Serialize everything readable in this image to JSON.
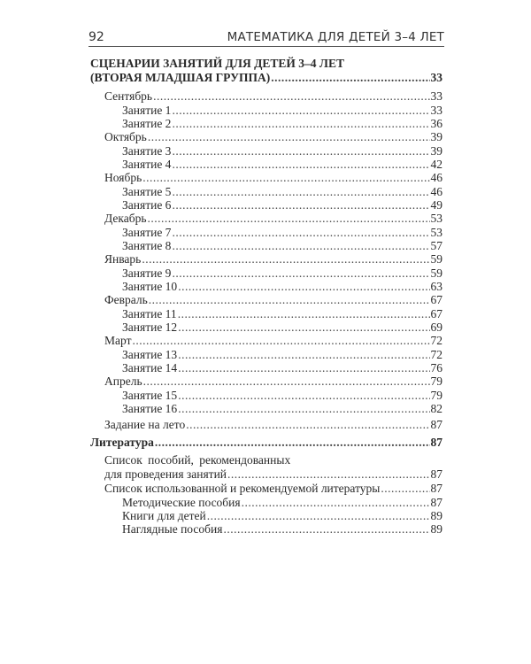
{
  "header": {
    "page_number": "92",
    "running_title": "МАТЕМАТИКА ДЛЯ ДЕТЕЙ 3–4 ЛЕТ"
  },
  "toc": {
    "section1": {
      "title_line1": "СЦЕНАРИИ ЗАНЯТИЙ ДЛЯ ДЕТЕЙ 3–4 ЛЕТ",
      "title_line2": "(ВТОРАЯ МЛАДШАЯ ГРУППА)",
      "page": "33"
    },
    "months": [
      {
        "label": "Сентябрь",
        "page": "33",
        "lessons": [
          {
            "label": "Занятие 1",
            "page": "33"
          },
          {
            "label": "Занятие 2",
            "page": "36"
          }
        ]
      },
      {
        "label": "Октябрь",
        "page": "39",
        "lessons": [
          {
            "label": "Занятие 3",
            "page": "39"
          },
          {
            "label": "Занятие 4",
            "page": "42"
          }
        ]
      },
      {
        "label": "Ноябрь",
        "page": "46",
        "lessons": [
          {
            "label": "Занятие 5",
            "page": "46"
          },
          {
            "label": "Занятие 6",
            "page": "49"
          }
        ]
      },
      {
        "label": "Декабрь",
        "page": "53",
        "lessons": [
          {
            "label": "Занятие 7",
            "page": "53"
          },
          {
            "label": "Занятие 8",
            "page": "57"
          }
        ]
      },
      {
        "label": "Январь",
        "page": "59",
        "lessons": [
          {
            "label": "Занятие 9",
            "page": "59"
          },
          {
            "label": "Занятие 10",
            "page": "63"
          }
        ]
      },
      {
        "label": "Февраль",
        "page": "67",
        "lessons": [
          {
            "label": "Занятие 11",
            "page": "67"
          },
          {
            "label": "Занятие 12",
            "page": "69"
          }
        ]
      },
      {
        "label": "Март",
        "page": "72",
        "lessons": [
          {
            "label": "Занятие 13",
            "page": "72"
          },
          {
            "label": "Занятие 14",
            "page": "76"
          }
        ]
      },
      {
        "label": "Апрель",
        "page": "79",
        "lessons": [
          {
            "label": "Занятие 15",
            "page": "79"
          },
          {
            "label": "Занятие 16",
            "page": "82"
          }
        ]
      }
    ],
    "summer": {
      "label": "Задание на лето",
      "page": "87"
    },
    "section2": {
      "title": "Литература",
      "page": "87"
    },
    "lit": {
      "manuals_line1": "Список пособий, рекомендованных",
      "manuals_line2": "для проведения занятий",
      "manuals_page": "87",
      "list": {
        "label": "Список использованной и рекомендуемой литературы",
        "page": "87"
      },
      "sub": [
        {
          "label": "Методические пособия",
          "page": "87"
        },
        {
          "label": "Книги для детей",
          "page": "89"
        },
        {
          "label": "Наглядные пособия",
          "page": "89"
        }
      ]
    }
  }
}
